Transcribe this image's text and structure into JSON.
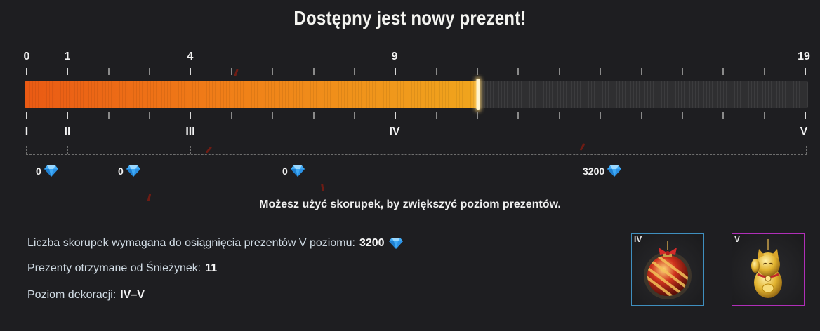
{
  "title": "Dostępny jest nowy prezent!",
  "progress": {
    "min": 0,
    "max": 19,
    "current": 11,
    "fill_start_color": "#ea5a14",
    "fill_end_color": "#f0a51d",
    "milestones_top": [
      "0",
      "1",
      "4",
      "9",
      "19"
    ],
    "milestones_bottom": [
      "I",
      "II",
      "III",
      "IV",
      "V"
    ]
  },
  "rewards": [
    {
      "value": "0",
      "icon": "diamond-icon"
    },
    {
      "value": "0",
      "icon": "diamond-icon"
    },
    {
      "value": "0",
      "icon": "diamond-icon"
    },
    {
      "value": "3200",
      "icon": "diamond-icon"
    }
  ],
  "hint": "Możesz użyć skorupek, by zwiększyć poziom prezentów.",
  "info": {
    "required_label": "Liczba skorupek wymagana do osiągnięcia prezentów V poziomu:",
    "required_value": "3200",
    "received_label": "Prezenty otrzymane od Śnieżynek:",
    "received_value": "11",
    "decoration_label": "Poziom dekoracji:",
    "decoration_value": "IV–V"
  },
  "cards": [
    {
      "level": "IV",
      "item": "christmas-ornament-icon",
      "border_color": "#3f8fbf"
    },
    {
      "level": "V",
      "item": "lucky-cat-icon",
      "border_color": "#b02fb8"
    }
  ]
}
